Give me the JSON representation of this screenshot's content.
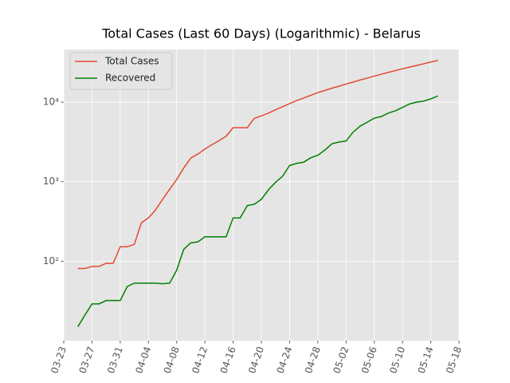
{
  "chart_data": {
    "type": "line",
    "title": "Total Cases (Last 60 Days) (Logarithmic) - Belarus",
    "x": [
      "03-25",
      "03-26",
      "03-27",
      "03-28",
      "03-29",
      "03-30",
      "03-31",
      "04-01",
      "04-02",
      "04-03",
      "04-04",
      "04-05",
      "04-06",
      "04-07",
      "04-08",
      "04-09",
      "04-10",
      "04-11",
      "04-12",
      "04-13",
      "04-14",
      "04-15",
      "04-16",
      "04-17",
      "04-18",
      "04-19",
      "04-20",
      "04-21",
      "04-22",
      "04-23",
      "04-24",
      "04-25",
      "04-26",
      "04-27",
      "04-28",
      "04-29",
      "04-30",
      "05-01",
      "05-02",
      "05-03",
      "05-04",
      "05-05",
      "05-06",
      "05-07",
      "05-08",
      "05-09",
      "05-10",
      "05-11",
      "05-12",
      "05-13",
      "05-14",
      "05-15"
    ],
    "series": [
      {
        "name": "Total Cases",
        "color": "#E24A33",
        "values": [
          81,
          81,
          86,
          86,
          94,
          94,
          152,
          152,
          163,
          304,
          351,
          440,
          600,
          800,
          1066,
          1486,
          1981,
          2226,
          2578,
          2919,
          3281,
          3728,
          4779,
          4779,
          4779,
          6264,
          6723,
          7281,
          8022,
          8773,
          9590,
          10463,
          11289,
          12208,
          13181,
          14027,
          15000,
          15900,
          16900,
          17900,
          19000,
          20100,
          21300,
          22500,
          23700,
          25000,
          26300,
          27600,
          29000,
          30400,
          32000,
          33500
        ]
      },
      {
        "name": "Recovered",
        "color": "#008000",
        "values": [
          15,
          21,
          29,
          29,
          32,
          32,
          32,
          48,
          53,
          53,
          53,
          53,
          52,
          53,
          77,
          141,
          170,
          175,
          203,
          203,
          203,
          203,
          350,
          350,
          500,
          520,
          600,
          790,
          980,
          1170,
          1600,
          1700,
          1760,
          2000,
          2150,
          2500,
          3000,
          3150,
          3250,
          4200,
          5000,
          5600,
          6300,
          6600,
          7300,
          7800,
          8600,
          9500,
          10000,
          10300,
          11000,
          12000
        ]
      }
    ],
    "xlim": [
      "03-23",
      "05-18"
    ],
    "xticks": [
      "03-23",
      "03-27",
      "03-31",
      "04-04",
      "04-08",
      "04-12",
      "04-16",
      "04-20",
      "04-24",
      "04-28",
      "05-02",
      "05-06",
      "05-10",
      "05-14",
      "05-18"
    ],
    "ylim": [
      10,
      46000
    ],
    "yscale": "log",
    "yticks": [
      {
        "value": 100,
        "label": "10²"
      },
      {
        "value": 1000,
        "label": "10³"
      },
      {
        "value": 10000,
        "label": "10⁴"
      }
    ],
    "grid": true,
    "legend": "upper left"
  }
}
